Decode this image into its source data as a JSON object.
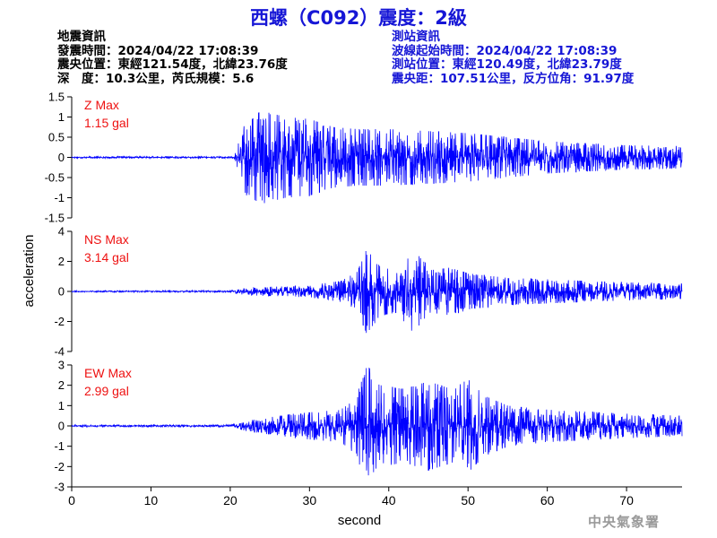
{
  "page": {
    "title": "西螺（C092）震度：2級",
    "watermark": "中央氣象署"
  },
  "earthquake_info": {
    "heading": "地震資訊",
    "origin_time": "發震時間：2024/04/22 17:08:39",
    "epicenter": "震央位置：東經121.54度，北緯23.76度",
    "depth_magnitude": "深　度：10.3公里，芮氏規模：5.6"
  },
  "station_info": {
    "heading": "測站資訊",
    "wave_start": "波線起始時間：2024/04/22 17:08:39",
    "station_location": "測站位置：東經120.49度，北緯23.79度",
    "distance_azimuth": "震央距：107.51公里，反方位角：91.97度"
  },
  "colors": {
    "title": "#1616d6",
    "station_text": "#1616d6",
    "trace": "#0000ff",
    "max_label": "#ee1111",
    "axis": "#000000"
  },
  "chart_data": [
    {
      "type": "line",
      "channel": "Z",
      "label": "Z Max",
      "max_text": "1.15 gal",
      "peak_abs": 1.15,
      "ylim": [
        -1.5,
        1.5
      ],
      "yticks": [
        -1.5,
        -1,
        -0.5,
        0,
        0.5,
        1,
        1.5
      ],
      "ytick_labels": [
        "-1.5",
        "-1",
        "-0.5",
        "0",
        "0.5",
        "1",
        "1.5"
      ],
      "envelope": [
        [
          0,
          0.02
        ],
        [
          20.5,
          0.02
        ],
        [
          21.2,
          0.45
        ],
        [
          22,
          0.95
        ],
        [
          24,
          1.15
        ],
        [
          27,
          1.0
        ],
        [
          30,
          0.95
        ],
        [
          33,
          0.75
        ],
        [
          36,
          0.7
        ],
        [
          40,
          0.7
        ],
        [
          45,
          0.65
        ],
        [
          50,
          0.6
        ],
        [
          55,
          0.5
        ],
        [
          60,
          0.4
        ],
        [
          65,
          0.35
        ],
        [
          70,
          0.3
        ],
        [
          77,
          0.28
        ]
      ]
    },
    {
      "type": "line",
      "channel": "NS",
      "label": "NS Max",
      "max_text": "3.14 gal",
      "peak_abs": 3.14,
      "ylim": [
        -4,
        4
      ],
      "yticks": [
        -4,
        -2,
        0,
        2,
        4
      ],
      "ytick_labels": [
        "-4",
        "-2",
        "0",
        "2",
        "4"
      ],
      "envelope": [
        [
          0,
          0.04
        ],
        [
          20,
          0.05
        ],
        [
          22,
          0.25
        ],
        [
          30,
          0.4
        ],
        [
          34,
          0.7
        ],
        [
          36,
          1.3
        ],
        [
          37.2,
          2.8
        ],
        [
          39,
          1.6
        ],
        [
          41,
          1.4
        ],
        [
          43.7,
          3.14
        ],
        [
          45,
          1.4
        ],
        [
          48,
          1.6
        ],
        [
          50,
          1.2
        ],
        [
          55,
          0.9
        ],
        [
          60,
          0.8
        ],
        [
          65,
          0.7
        ],
        [
          70,
          0.6
        ],
        [
          77,
          0.5
        ]
      ]
    },
    {
      "type": "line",
      "channel": "EW",
      "label": "EW Max",
      "max_text": "2.99 gal",
      "peak_abs": 2.99,
      "ylim": [
        -3,
        3
      ],
      "yticks": [
        -3,
        -2,
        -1,
        0,
        1,
        2,
        3
      ],
      "ytick_labels": [
        "-3",
        "-2",
        "-1",
        "0",
        "1",
        "2",
        "3"
      ],
      "envelope": [
        [
          0,
          0.04
        ],
        [
          20,
          0.05
        ],
        [
          22,
          0.25
        ],
        [
          28,
          0.6
        ],
        [
          34,
          0.8
        ],
        [
          36,
          1.6
        ],
        [
          37.3,
          2.99
        ],
        [
          39,
          2.0
        ],
        [
          42,
          1.8
        ],
        [
          45,
          2.2
        ],
        [
          48,
          1.8
        ],
        [
          50,
          2.3
        ],
        [
          52,
          1.5
        ],
        [
          55,
          1.0
        ],
        [
          60,
          0.8
        ],
        [
          65,
          0.7
        ],
        [
          70,
          0.6
        ],
        [
          77,
          0.5
        ]
      ]
    }
  ],
  "x_axis": {
    "xlabel": "second",
    "xlim": [
      0,
      77
    ],
    "ticks": [
      0,
      10,
      20,
      30,
      40,
      50,
      60,
      70
    ],
    "tick_labels": [
      "0",
      "10",
      "20",
      "30",
      "40",
      "50",
      "60",
      "70"
    ]
  },
  "y_axis": {
    "ylabel": "acceleration"
  }
}
